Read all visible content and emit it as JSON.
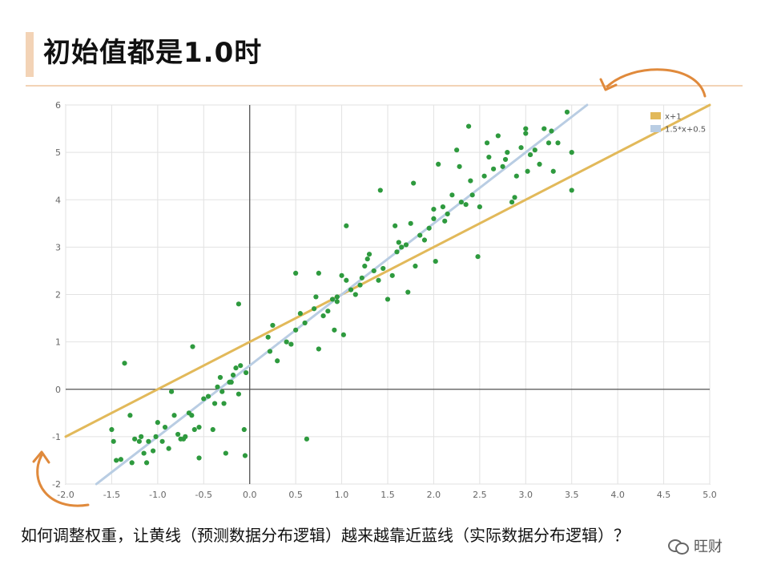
{
  "slide": {
    "title": "初始值都是1.0时",
    "caption": "如何调整权重，让黄线（预测数据分布逻辑）越来越靠近蓝线（实际数据分布逻辑）？",
    "watermark": "旺财"
  },
  "colors": {
    "accent": "#f3d3b6",
    "arrow": "#e08a3c",
    "points": "#2e9a3e",
    "line_pred": "#e2b95a",
    "line_actual": "#b9cde3",
    "grid": "#e2e2e2",
    "axis": "#555555"
  },
  "chart_data": {
    "type": "scatter",
    "xlim": [
      -2.0,
      5.0
    ],
    "ylim": [
      -2,
      6
    ],
    "x_ticks": [
      "-2.0",
      "-1.5",
      "-1.0",
      "-0.5",
      "0.0",
      "0.5",
      "1.0",
      "1.5",
      "2.0",
      "2.5",
      "3.0",
      "3.5",
      "4.0",
      "4.5",
      "5.0"
    ],
    "y_ticks": [
      "-2",
      "-1",
      "0",
      "1",
      "2",
      "3",
      "4",
      "5",
      "6"
    ],
    "grid": true,
    "legend": {
      "position": "top-right",
      "entries": [
        "x+1",
        "1.5*x+0.5"
      ]
    },
    "lines": [
      {
        "name": "x+1",
        "slope": 1.0,
        "intercept": 1.0,
        "color": "#e2b95a"
      },
      {
        "name": "1.5*x+0.5",
        "slope": 1.5,
        "intercept": 0.5,
        "color": "#b9cde3"
      }
    ],
    "points": [
      [
        -1.5,
        -0.85
      ],
      [
        -1.48,
        -1.1
      ],
      [
        -1.45,
        -1.5
      ],
      [
        -1.4,
        -1.48
      ],
      [
        -1.36,
        0.55
      ],
      [
        -1.3,
        -0.55
      ],
      [
        -1.28,
        -1.55
      ],
      [
        -1.25,
        -1.05
      ],
      [
        -1.2,
        -1.1
      ],
      [
        -1.18,
        -1.0
      ],
      [
        -1.15,
        -1.35
      ],
      [
        -1.12,
        -1.55
      ],
      [
        -1.1,
        -1.1
      ],
      [
        -1.05,
        -1.3
      ],
      [
        -1.02,
        -1.0
      ],
      [
        -1.0,
        -0.7
      ],
      [
        -0.95,
        -1.1
      ],
      [
        -0.92,
        -0.8
      ],
      [
        -0.88,
        -1.25
      ],
      [
        -0.85,
        -0.05
      ],
      [
        -0.82,
        -0.55
      ],
      [
        -0.78,
        -0.95
      ],
      [
        -0.75,
        -1.05
      ],
      [
        -0.72,
        -1.05
      ],
      [
        -0.7,
        -1.0
      ],
      [
        -0.66,
        -0.5
      ],
      [
        -0.63,
        -0.55
      ],
      [
        -0.62,
        0.9
      ],
      [
        -0.6,
        -0.85
      ],
      [
        -0.55,
        -0.8
      ],
      [
        -0.55,
        -1.45
      ],
      [
        -0.5,
        -0.2
      ],
      [
        -0.45,
        -0.15
      ],
      [
        -0.4,
        -0.85
      ],
      [
        -0.38,
        -0.3
      ],
      [
        -0.35,
        0.05
      ],
      [
        -0.32,
        0.25
      ],
      [
        -0.3,
        -0.05
      ],
      [
        -0.28,
        -0.3
      ],
      [
        -0.26,
        -1.35
      ],
      [
        -0.22,
        0.15
      ],
      [
        -0.2,
        0.15
      ],
      [
        -0.18,
        0.3
      ],
      [
        -0.15,
        0.45
      ],
      [
        -0.12,
        1.8
      ],
      [
        -0.12,
        -0.1
      ],
      [
        -0.1,
        0.5
      ],
      [
        -0.06,
        -0.85
      ],
      [
        -0.05,
        -1.4
      ],
      [
        -0.04,
        0.35
      ],
      [
        0.2,
        1.1
      ],
      [
        0.22,
        0.8
      ],
      [
        0.25,
        1.35
      ],
      [
        0.3,
        0.6
      ],
      [
        0.4,
        1.0
      ],
      [
        0.45,
        0.95
      ],
      [
        0.5,
        2.45
      ],
      [
        0.5,
        1.25
      ],
      [
        0.55,
        1.6
      ],
      [
        0.6,
        1.4
      ],
      [
        0.62,
        -1.05
      ],
      [
        0.7,
        1.7
      ],
      [
        0.72,
        1.95
      ],
      [
        0.75,
        2.45
      ],
      [
        0.75,
        0.85
      ],
      [
        0.8,
        1.55
      ],
      [
        0.85,
        1.65
      ],
      [
        0.9,
        1.9
      ],
      [
        0.92,
        1.25
      ],
      [
        0.95,
        1.95
      ],
      [
        1.0,
        2.4
      ],
      [
        1.02,
        1.15
      ],
      [
        1.05,
        2.3
      ],
      [
        1.05,
        3.45
      ],
      [
        1.1,
        2.1
      ],
      [
        1.15,
        2.0
      ],
      [
        1.2,
        2.2
      ],
      [
        1.25,
        2.6
      ],
      [
        1.28,
        2.75
      ],
      [
        1.3,
        2.85
      ],
      [
        1.35,
        2.5
      ],
      [
        1.4,
        2.3
      ],
      [
        1.42,
        4.2
      ],
      [
        1.45,
        2.55
      ],
      [
        1.5,
        1.9
      ],
      [
        1.55,
        2.4
      ],
      [
        1.58,
        3.45
      ],
      [
        1.6,
        2.9
      ],
      [
        1.65,
        3.0
      ],
      [
        1.7,
        3.05
      ],
      [
        1.72,
        2.05
      ],
      [
        1.75,
        3.5
      ],
      [
        1.78,
        4.35
      ],
      [
        1.8,
        2.6
      ],
      [
        1.85,
        3.25
      ],
      [
        1.9,
        3.15
      ],
      [
        1.95,
        3.4
      ],
      [
        2.0,
        3.8
      ],
      [
        2.0,
        3.6
      ],
      [
        2.02,
        2.7
      ],
      [
        2.05,
        4.75
      ],
      [
        2.1,
        3.85
      ],
      [
        2.15,
        3.7
      ],
      [
        2.2,
        4.1
      ],
      [
        2.25,
        5.05
      ],
      [
        2.28,
        4.7
      ],
      [
        2.3,
        3.95
      ],
      [
        2.35,
        3.9
      ],
      [
        2.38,
        5.55
      ],
      [
        2.4,
        4.4
      ],
      [
        2.42,
        4.1
      ],
      [
        2.48,
        2.8
      ],
      [
        2.5,
        3.85
      ],
      [
        2.55,
        4.5
      ],
      [
        2.6,
        4.9
      ],
      [
        2.65,
        4.65
      ],
      [
        2.7,
        5.35
      ],
      [
        2.75,
        4.7
      ],
      [
        2.8,
        5.0
      ],
      [
        2.85,
        3.95
      ],
      [
        2.9,
        4.5
      ],
      [
        2.95,
        5.1
      ],
      [
        3.0,
        5.4
      ],
      [
        3.02,
        4.6
      ],
      [
        3.05,
        4.95
      ],
      [
        3.1,
        5.05
      ],
      [
        3.15,
        4.75
      ],
      [
        3.2,
        5.5
      ],
      [
        3.25,
        5.2
      ],
      [
        3.3,
        4.6
      ],
      [
        3.35,
        5.2
      ],
      [
        3.45,
        5.85
      ],
      [
        3.5,
        4.2
      ],
      [
        3.5,
        5.0
      ],
      [
        2.78,
        4.85
      ],
      [
        2.58,
        5.2
      ],
      [
        1.22,
        2.35
      ],
      [
        0.95,
        1.85
      ],
      [
        2.12,
        3.55
      ],
      [
        1.62,
        3.1
      ],
      [
        3.28,
        5.45
      ],
      [
        2.88,
        4.05
      ],
      [
        3.0,
        5.5
      ]
    ]
  }
}
